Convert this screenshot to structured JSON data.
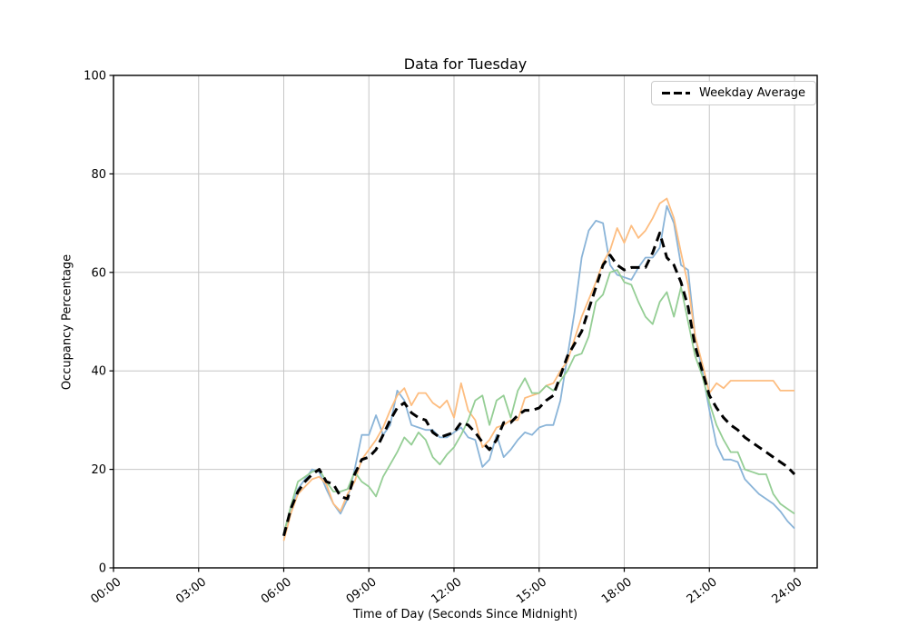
{
  "chart_data": {
    "type": "line",
    "title": "Data for Tuesday",
    "xlabel": "Time of Day (Seconds Since Midnight)",
    "ylabel": "Occupancy Percentage",
    "grid": true,
    "grid_color": "#c6c6c6",
    "spine_color": "#000000",
    "x_axis": {
      "unit": "hours",
      "min": 0,
      "max": 24.8,
      "ticks": [
        {
          "hour": 0,
          "label": "00:00"
        },
        {
          "hour": 3,
          "label": "03:00"
        },
        {
          "hour": 6,
          "label": "06:00"
        },
        {
          "hour": 9,
          "label": "09:00"
        },
        {
          "hour": 12,
          "label": "12:00"
        },
        {
          "hour": 15,
          "label": "15:00"
        },
        {
          "hour": 18,
          "label": "18:00"
        },
        {
          "hour": 21,
          "label": "21:00"
        },
        {
          "hour": 24,
          "label": "24:00"
        }
      ]
    },
    "y_axis": {
      "min": 0,
      "max": 100,
      "ticks": [
        0,
        20,
        40,
        60,
        80,
        100
      ]
    },
    "legend": {
      "position": "upper right",
      "entries": [
        {
          "label": "Weekday Average",
          "style": "dashed",
          "color": "#000000"
        }
      ]
    },
    "sample_interval_minutes": 15,
    "series": [
      {
        "name": "series-blue",
        "color": "#8ab4d8",
        "style": "solid",
        "width": 1.8,
        "start_hour": 6,
        "step_hour": 0.25,
        "values": [
          7,
          12,
          16,
          18,
          20,
          19.5,
          16,
          13,
          11,
          14,
          20,
          27,
          27,
          31,
          27,
          29,
          36,
          34,
          29,
          28.5,
          28,
          28,
          26.5,
          26.5,
          27.5,
          28.5,
          26.5,
          26,
          20.5,
          22,
          27,
          22.5,
          24,
          26,
          27.5,
          27,
          28.5,
          29,
          29,
          34,
          43,
          52,
          63,
          68.5,
          70.5,
          70,
          61.5,
          59.5,
          59,
          58.5,
          61,
          63,
          63,
          65,
          73.5,
          70,
          61.5,
          60.5,
          47,
          40,
          32,
          25,
          22,
          22,
          21.5,
          18,
          16.5,
          15,
          14,
          13,
          11.5,
          9.5,
          8
        ]
      },
      {
        "name": "series-orange",
        "color": "#fdbd80",
        "style": "solid",
        "width": 1.8,
        "start_hour": 6,
        "step_hour": 0.25,
        "values": [
          5.5,
          11,
          15,
          16.5,
          18,
          18.5,
          17,
          13,
          11.5,
          15,
          17.5,
          22,
          24,
          26,
          28.5,
          32,
          35,
          36.5,
          33,
          35.5,
          35.5,
          33.5,
          32.5,
          34,
          30.5,
          37.5,
          32,
          30,
          24.5,
          26,
          28.5,
          29,
          30,
          30,
          34.5,
          35,
          35.5,
          37,
          37.5,
          40,
          42,
          46.5,
          51,
          54.5,
          58,
          62,
          64.5,
          69,
          66,
          69.5,
          67,
          68.5,
          71,
          74,
          75,
          71,
          64,
          57.5,
          47,
          41.5,
          35.5,
          37.5,
          36.5,
          38,
          38,
          38,
          38,
          38,
          38,
          38,
          36,
          36,
          36
        ]
      },
      {
        "name": "series-green",
        "color": "#95ce95",
        "style": "solid",
        "width": 1.8,
        "start_hour": 6,
        "step_hour": 0.25,
        "values": [
          7,
          12.5,
          17.5,
          18.5,
          19.5,
          20,
          17.5,
          15.5,
          15.5,
          16,
          19.5,
          17.5,
          16.5,
          14.5,
          18.5,
          21,
          23.5,
          26.5,
          25,
          27.5,
          26,
          22.5,
          21,
          23,
          24.5,
          27,
          30,
          34,
          35,
          29,
          34,
          35,
          30.5,
          36,
          38.5,
          35.5,
          35.5,
          37,
          36,
          38,
          40,
          43,
          43.5,
          47,
          54,
          55.5,
          60,
          60.5,
          58,
          57.5,
          54,
          51,
          49.5,
          54,
          56,
          51,
          57,
          50,
          43,
          39,
          33.5,
          29,
          26,
          23.5,
          23.5,
          20,
          19.5,
          19,
          19,
          15,
          13,
          12,
          11
        ]
      },
      {
        "name": "weekday-average",
        "color": "#000000",
        "style": "dashed",
        "width": 3,
        "start_hour": 6,
        "step_hour": 0.25,
        "values": [
          6.5,
          12,
          15.5,
          17.5,
          19,
          20,
          17.5,
          17,
          14.5,
          14,
          19,
          22,
          22.5,
          24,
          27,
          30,
          32.5,
          33.5,
          31.5,
          30.5,
          30,
          27.5,
          26.5,
          27,
          27.5,
          29.5,
          29,
          27.5,
          25.5,
          24,
          26,
          29.5,
          29.5,
          31,
          32,
          32,
          32.5,
          34,
          35,
          39,
          43,
          45.5,
          48,
          52.5,
          57,
          61.5,
          63.5,
          61.5,
          60.5,
          61,
          61,
          61,
          64,
          68,
          63,
          61.5,
          58,
          53,
          45,
          40,
          35,
          32.5,
          30.5,
          29,
          28,
          26.5,
          25.5,
          24.5,
          23.5,
          22.5,
          21.5,
          20.5,
          19
        ]
      }
    ]
  }
}
